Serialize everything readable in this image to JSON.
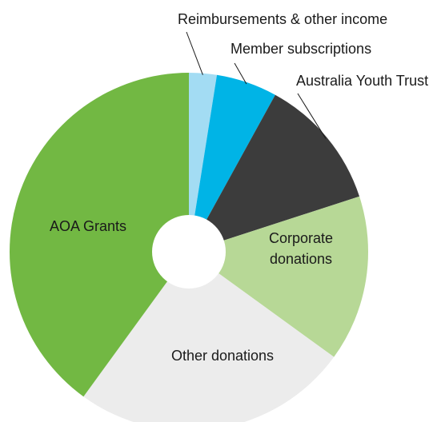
{
  "chart_data": {
    "type": "pie",
    "style": "donut",
    "categories": [
      "Reimbursements & other income",
      "Member subscriptions",
      "Australia Youth Trust",
      "Corporate donations",
      "Other donations",
      "AOA Grants"
    ],
    "values": [
      2.5,
      5.5,
      12,
      15,
      25,
      40
    ],
    "unit": "percent (estimated share)",
    "colors": [
      "#a3dcf3",
      "#00b4e6",
      "#3c3c3c",
      "#b7d896",
      "#ececec",
      "#72b843"
    ],
    "title": "",
    "legend": "none (outside callout labels for small slices, inside labels for large slices)",
    "label_placement": {
      "Reimbursements & other income": "outside",
      "Member subscriptions": "outside",
      "Australia Youth Trust": "outside",
      "Corporate donations": "inside",
      "Other donations": "inside",
      "AOA Grants": "inside"
    },
    "start": "12 o'clock, clockwise"
  }
}
